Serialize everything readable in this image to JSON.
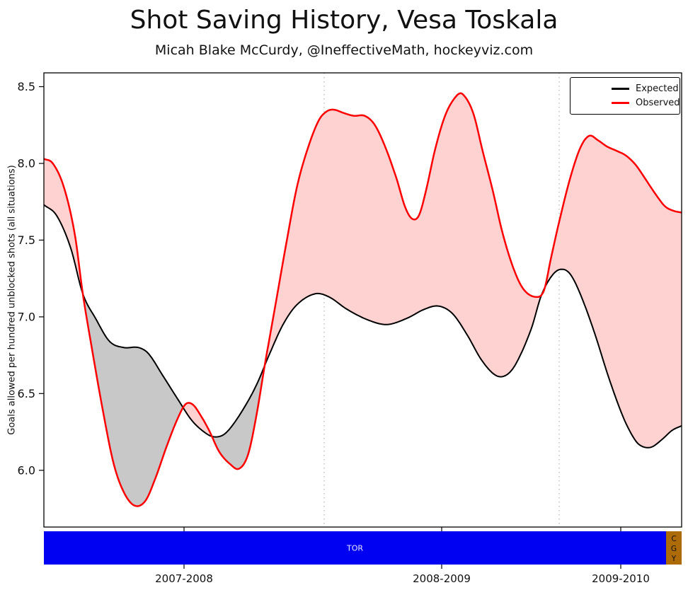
{
  "header": {
    "title": "Shot Saving History, Vesa Toskala",
    "subtitle": "Micah Blake McCurdy, @IneffectiveMath, hockeyviz.com"
  },
  "chart_data": {
    "type": "line",
    "title": "Shot Saving History, Vesa Toskala",
    "subtitle": "Micah Blake McCurdy, @IneffectiveMath, hockeyviz.com",
    "xlabel": "",
    "ylabel": "Goals allowed per hundred unblocked shots (all situations)",
    "ylim": [
      5.63,
      8.59
    ],
    "yticks": [
      "6.0",
      "6.5",
      "7.0",
      "7.5",
      "8.0",
      "8.5"
    ],
    "grid": "vertical dotted lines at season boundaries",
    "legend_position": "upper right",
    "legend": [
      {
        "name": "Expected",
        "color": "#000000"
      },
      {
        "name": "Observed",
        "color": "#ff0000"
      }
    ],
    "colors": {
      "frame": "#000000",
      "grid": "#c4c4c4",
      "fill_observed_above": "#ffd2d2",
      "fill_expected_above": "#c8c8c8",
      "tick_text": "#111111"
    },
    "x_axis": {
      "ticks": [
        {
          "label": "2007-2008",
          "pos": 0.2198
        },
        {
          "label": "2008-2009",
          "pos": 0.6237
        },
        {
          "label": "2009-2010",
          "pos": 0.9045
        }
      ],
      "gridlines": [
        0.4395,
        0.808
      ]
    },
    "series": [
      {
        "name": "Expected",
        "color": "#000000",
        "width": 2,
        "points": [
          [
            0.0,
            7.73
          ],
          [
            0.02,
            7.66
          ],
          [
            0.042,
            7.45
          ],
          [
            0.061,
            7.15
          ],
          [
            0.081,
            6.99
          ],
          [
            0.103,
            6.84
          ],
          [
            0.125,
            6.8
          ],
          [
            0.148,
            6.8
          ],
          [
            0.164,
            6.76
          ],
          [
            0.186,
            6.62
          ],
          [
            0.212,
            6.45
          ],
          [
            0.231,
            6.33
          ],
          [
            0.248,
            6.26
          ],
          [
            0.264,
            6.22
          ],
          [
            0.281,
            6.23
          ],
          [
            0.297,
            6.3
          ],
          [
            0.32,
            6.45
          ],
          [
            0.336,
            6.58
          ],
          [
            0.354,
            6.76
          ],
          [
            0.375,
            6.95
          ],
          [
            0.397,
            7.08
          ],
          [
            0.425,
            7.15
          ],
          [
            0.447,
            7.13
          ],
          [
            0.475,
            7.05
          ],
          [
            0.508,
            6.98
          ],
          [
            0.538,
            6.95
          ],
          [
            0.569,
            6.99
          ],
          [
            0.597,
            7.05
          ],
          [
            0.619,
            7.07
          ],
          [
            0.641,
            7.02
          ],
          [
            0.664,
            6.88
          ],
          [
            0.686,
            6.72
          ],
          [
            0.708,
            6.62
          ],
          [
            0.725,
            6.62
          ],
          [
            0.741,
            6.7
          ],
          [
            0.764,
            6.92
          ],
          [
            0.78,
            7.14
          ],
          [
            0.797,
            7.27
          ],
          [
            0.811,
            7.31
          ],
          [
            0.825,
            7.28
          ],
          [
            0.841,
            7.15
          ],
          [
            0.863,
            6.9
          ],
          [
            0.886,
            6.6
          ],
          [
            0.908,
            6.35
          ],
          [
            0.925,
            6.21
          ],
          [
            0.936,
            6.16
          ],
          [
            0.952,
            6.15
          ],
          [
            0.969,
            6.2
          ],
          [
            0.985,
            6.26
          ],
          [
            1.0,
            6.29
          ]
        ]
      },
      {
        "name": "Observed",
        "color": "#ff0000",
        "width": 2.5,
        "points": [
          [
            0.0,
            8.03
          ],
          [
            0.014,
            8.0
          ],
          [
            0.031,
            7.85
          ],
          [
            0.048,
            7.55
          ],
          [
            0.061,
            7.15
          ],
          [
            0.075,
            6.8
          ],
          [
            0.092,
            6.4
          ],
          [
            0.109,
            6.05
          ],
          [
            0.125,
            5.86
          ],
          [
            0.142,
            5.77
          ],
          [
            0.159,
            5.8
          ],
          [
            0.175,
            5.95
          ],
          [
            0.192,
            6.15
          ],
          [
            0.209,
            6.33
          ],
          [
            0.222,
            6.43
          ],
          [
            0.233,
            6.43
          ],
          [
            0.244,
            6.37
          ],
          [
            0.259,
            6.26
          ],
          [
            0.275,
            6.12
          ],
          [
            0.292,
            6.04
          ],
          [
            0.306,
            6.01
          ],
          [
            0.32,
            6.1
          ],
          [
            0.333,
            6.35
          ],
          [
            0.347,
            6.7
          ],
          [
            0.364,
            7.1
          ],
          [
            0.381,
            7.5
          ],
          [
            0.397,
            7.85
          ],
          [
            0.414,
            8.1
          ],
          [
            0.431,
            8.28
          ],
          [
            0.444,
            8.34
          ],
          [
            0.455,
            8.35
          ],
          [
            0.469,
            8.33
          ],
          [
            0.486,
            8.31
          ],
          [
            0.503,
            8.31
          ],
          [
            0.519,
            8.25
          ],
          [
            0.536,
            8.1
          ],
          [
            0.553,
            7.9
          ],
          [
            0.566,
            7.72
          ],
          [
            0.577,
            7.64
          ],
          [
            0.588,
            7.66
          ],
          [
            0.599,
            7.82
          ],
          [
            0.614,
            8.1
          ],
          [
            0.63,
            8.32
          ],
          [
            0.647,
            8.44
          ],
          [
            0.657,
            8.45
          ],
          [
            0.673,
            8.33
          ],
          [
            0.688,
            8.08
          ],
          [
            0.704,
            7.82
          ],
          [
            0.719,
            7.55
          ],
          [
            0.736,
            7.32
          ],
          [
            0.752,
            7.18
          ],
          [
            0.771,
            7.13
          ],
          [
            0.784,
            7.17
          ],
          [
            0.795,
            7.38
          ],
          [
            0.808,
            7.62
          ],
          [
            0.825,
            7.9
          ],
          [
            0.841,
            8.1
          ],
          [
            0.855,
            8.18
          ],
          [
            0.869,
            8.15
          ],
          [
            0.883,
            8.11
          ],
          [
            0.899,
            8.08
          ],
          [
            0.913,
            8.05
          ],
          [
            0.928,
            7.99
          ],
          [
            0.943,
            7.9
          ],
          [
            0.959,
            7.8
          ],
          [
            0.974,
            7.72
          ],
          [
            0.988,
            7.69
          ],
          [
            1.0,
            7.68
          ]
        ]
      }
    ],
    "team_bar": {
      "segments": [
        {
          "team": "TOR",
          "start": 0.0,
          "end": 0.9756,
          "color": "#0000f2",
          "text_color": "#e9e9ff"
        },
        {
          "team": "CGY",
          "start": 0.9756,
          "end": 1.0,
          "color": "#ad6b08",
          "text_color": "#111111"
        }
      ]
    }
  }
}
